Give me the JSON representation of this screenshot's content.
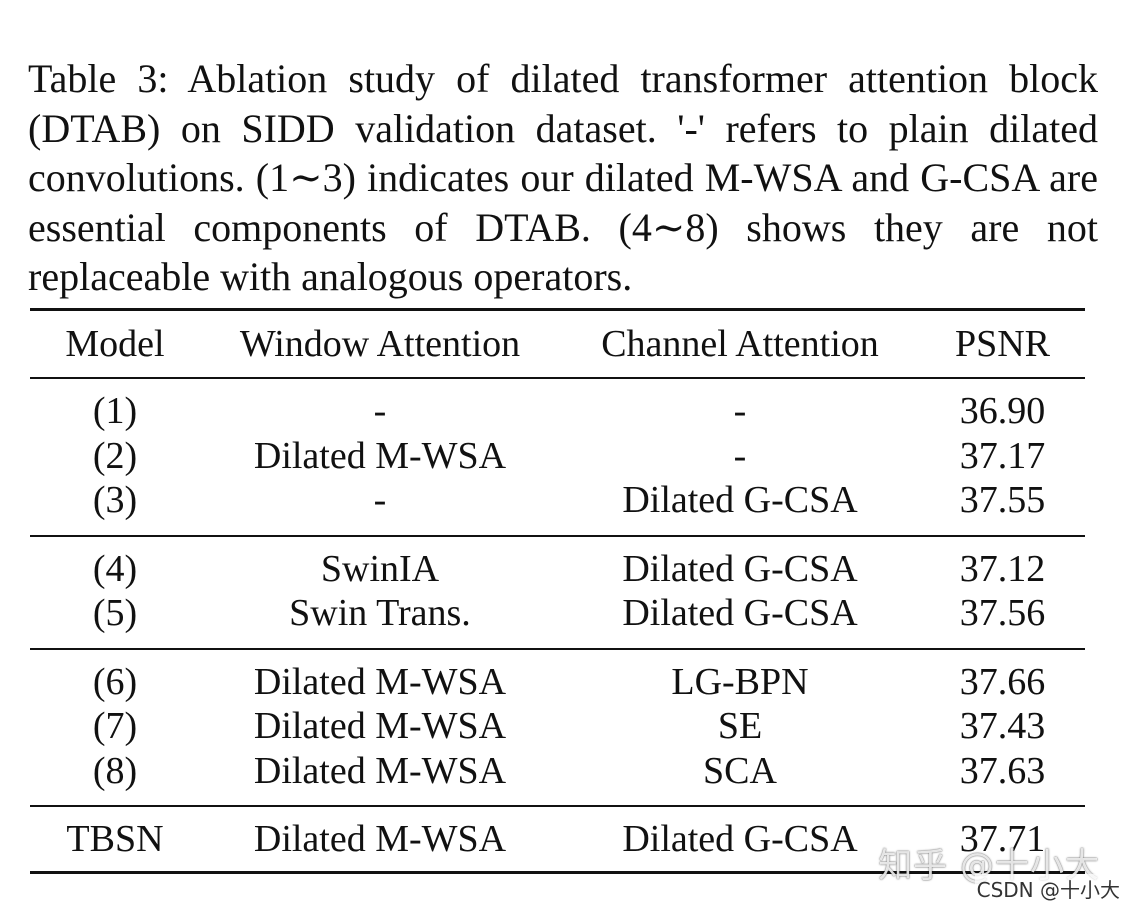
{
  "caption": "Table 3: Ablation study of dilated transformer attention block (DTAB) on SIDD validation dataset. '-' refers to plain dilated convolutions. (1∼3) indicates our dilated M-WSA and G-CSA are essential components of DTAB. (4∼8) shows they are not replaceable with analogous operators.",
  "table": {
    "headers": [
      "Model",
      "Window Attention",
      "Channel Attention",
      "PSNR"
    ],
    "groups": [
      [
        [
          "(1)",
          "-",
          "-",
          "36.90"
        ],
        [
          "(2)",
          "Dilated M-WSA",
          "-",
          "37.17"
        ],
        [
          "(3)",
          "-",
          "Dilated G-CSA",
          "37.55"
        ]
      ],
      [
        [
          "(4)",
          "SwinIA",
          "Dilated G-CSA",
          "37.12"
        ],
        [
          "(5)",
          "Swin Trans.",
          "Dilated G-CSA",
          "37.56"
        ]
      ],
      [
        [
          "(6)",
          "Dilated M-WSA",
          "LG-BPN",
          "37.66"
        ],
        [
          "(7)",
          "Dilated M-WSA",
          "SE",
          "37.43"
        ],
        [
          "(8)",
          "Dilated M-WSA",
          "SCA",
          "37.63"
        ]
      ]
    ],
    "final": [
      "TBSN",
      "Dilated M-WSA",
      "Dilated G-CSA",
      "37.71"
    ]
  },
  "watermark": {
    "zhihu": "知乎 @十小大",
    "csdn": "CSDN @十小大"
  }
}
